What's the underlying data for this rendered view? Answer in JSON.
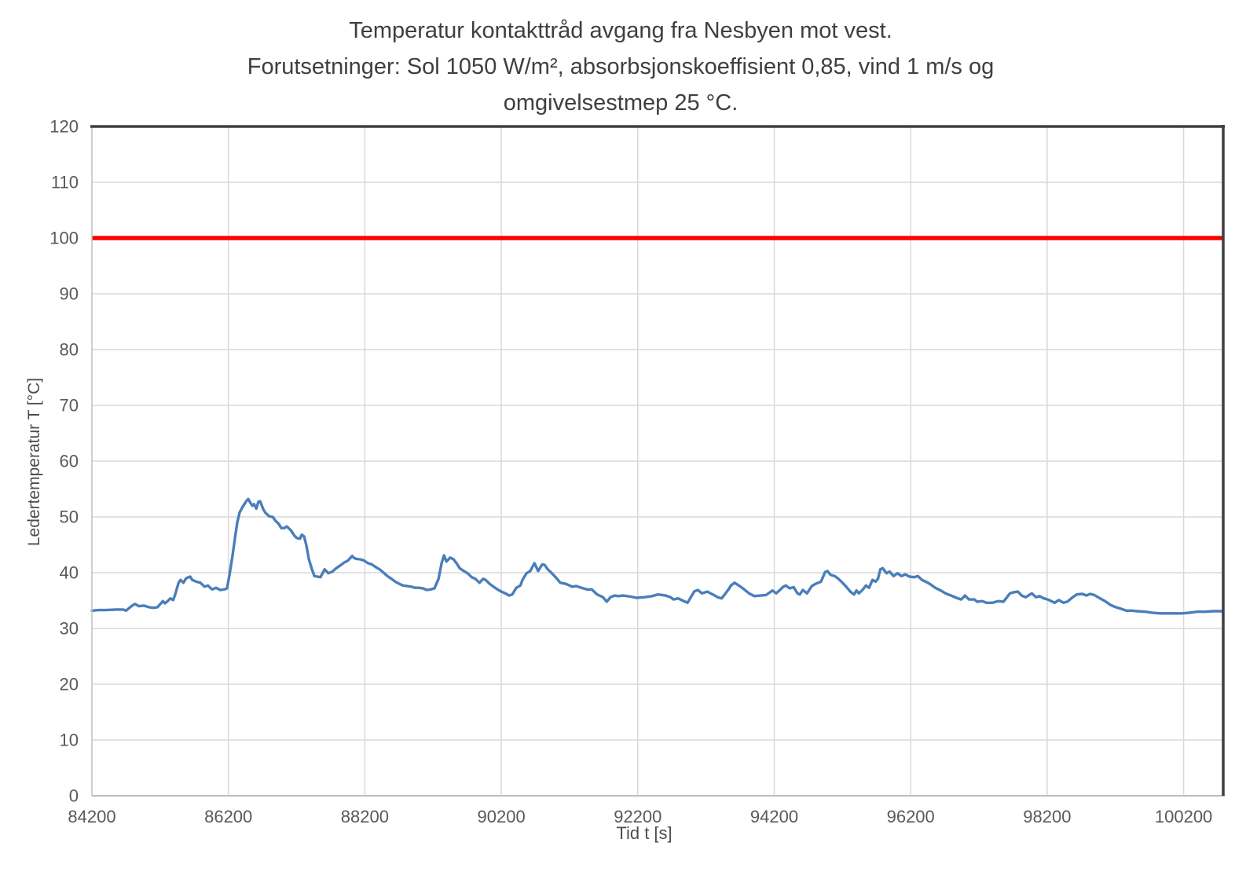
{
  "title": {
    "line1": "Temperatur kontakttråd avgang fra Nesbyen mot vest.",
    "line2": "Forutsetninger: Sol 1050 W/m², absorbsjonskoeffisient  0,85, vind 1 m/s og",
    "line3": "omgivelsestmep 25 °C."
  },
  "colors": {
    "background": "#FFFFFF",
    "grid": "#D9D9D9",
    "axis": "#BFBFBF",
    "frame_dark": "#3F3F3F",
    "tick_text": "#595959",
    "title_text": "#3F3F3F",
    "series_blue": "#4A7EBA",
    "limit_red": "#FE0000"
  },
  "chart_data": {
    "type": "line",
    "title": "Temperatur kontakttråd avgang fra Nesbyen mot vest. Forutsetninger: Sol 1050 W/m², absorbsjonskoeffisient 0,85, vind 1 m/s og omgivelsestmep 25 °C.",
    "xlabel": "Tid t [s]",
    "ylabel": "Ledertemperatur  T [°C]",
    "xlim": [
      84200,
      100780
    ],
    "ylim": [
      0,
      120
    ],
    "x_ticks": [
      84200,
      86200,
      88200,
      90200,
      92200,
      94200,
      96200,
      98200,
      100200
    ],
    "y_ticks": [
      0,
      10,
      20,
      30,
      40,
      50,
      60,
      70,
      80,
      90,
      100,
      110,
      120
    ],
    "grid": true,
    "legend_position": "none",
    "series": [
      {
        "name": "ledertemperatur",
        "type": "line",
        "color": "#4A7EBA",
        "points": [
          [
            84200,
            33.2
          ],
          [
            84300,
            33.3
          ],
          [
            84400,
            33.3
          ],
          [
            84550,
            33.4
          ],
          [
            84660,
            33.4
          ],
          [
            84700,
            33.2
          ],
          [
            84790,
            34.1
          ],
          [
            84830,
            34.4
          ],
          [
            84890,
            34.0
          ],
          [
            84960,
            34.1
          ],
          [
            85040,
            33.8
          ],
          [
            85100,
            33.7
          ],
          [
            85160,
            33.8
          ],
          [
            85240,
            34.9
          ],
          [
            85270,
            34.5
          ],
          [
            85310,
            34.9
          ],
          [
            85350,
            35.4
          ],
          [
            85390,
            35.1
          ],
          [
            85420,
            36.1
          ],
          [
            85470,
            38.2
          ],
          [
            85500,
            38.7
          ],
          [
            85540,
            38.2
          ],
          [
            85580,
            39.0
          ],
          [
            85640,
            39.3
          ],
          [
            85670,
            38.7
          ],
          [
            85730,
            38.4
          ],
          [
            85790,
            38.2
          ],
          [
            85850,
            37.5
          ],
          [
            85900,
            37.7
          ],
          [
            85960,
            37.0
          ],
          [
            86020,
            37.3
          ],
          [
            86080,
            36.9
          ],
          [
            86140,
            37.0
          ],
          [
            86180,
            37.2
          ],
          [
            86215,
            39.5
          ],
          [
            86260,
            43.0
          ],
          [
            86300,
            46.5
          ],
          [
            86330,
            49.0
          ],
          [
            86365,
            50.8
          ],
          [
            86410,
            51.8
          ],
          [
            86460,
            52.8
          ],
          [
            86490,
            53.2
          ],
          [
            86550,
            52.0
          ],
          [
            86575,
            52.3
          ],
          [
            86610,
            51.5
          ],
          [
            86640,
            52.7
          ],
          [
            86665,
            52.8
          ],
          [
            86710,
            51.4
          ],
          [
            86745,
            50.7
          ],
          [
            86800,
            50.1
          ],
          [
            86850,
            50.0
          ],
          [
            86885,
            49.4
          ],
          [
            86940,
            48.7
          ],
          [
            86975,
            48.0
          ],
          [
            87020,
            48.0
          ],
          [
            87055,
            48.3
          ],
          [
            87115,
            47.6
          ],
          [
            87170,
            46.6
          ],
          [
            87205,
            46.2
          ],
          [
            87250,
            46.1
          ],
          [
            87275,
            46.8
          ],
          [
            87310,
            46.5
          ],
          [
            87345,
            44.8
          ],
          [
            87380,
            42.4
          ],
          [
            87425,
            40.6
          ],
          [
            87460,
            39.4
          ],
          [
            87505,
            39.3
          ],
          [
            87550,
            39.2
          ],
          [
            87610,
            40.6
          ],
          [
            87665,
            39.9
          ],
          [
            87725,
            40.2
          ],
          [
            87780,
            40.8
          ],
          [
            87840,
            41.3
          ],
          [
            87895,
            41.8
          ],
          [
            87955,
            42.2
          ],
          [
            88015,
            43.0
          ],
          [
            88035,
            42.7
          ],
          [
            88070,
            42.5
          ],
          [
            88130,
            42.4
          ],
          [
            88185,
            42.2
          ],
          [
            88245,
            41.7
          ],
          [
            88300,
            41.5
          ],
          [
            88360,
            41.0
          ],
          [
            88415,
            40.6
          ],
          [
            88475,
            40.0
          ],
          [
            88530,
            39.4
          ],
          [
            88590,
            38.9
          ],
          [
            88645,
            38.4
          ],
          [
            88705,
            38.0
          ],
          [
            88760,
            37.7
          ],
          [
            88820,
            37.6
          ],
          [
            88880,
            37.5
          ],
          [
            88935,
            37.3
          ],
          [
            88990,
            37.3
          ],
          [
            89050,
            37.2
          ],
          [
            89110,
            36.9
          ],
          [
            89165,
            37.0
          ],
          [
            89220,
            37.2
          ],
          [
            89280,
            38.9
          ],
          [
            89325,
            41.7
          ],
          [
            89360,
            43.1
          ],
          [
            89395,
            42.0
          ],
          [
            89450,
            42.7
          ],
          [
            89500,
            42.4
          ],
          [
            89555,
            41.5
          ],
          [
            89590,
            40.8
          ],
          [
            89650,
            40.3
          ],
          [
            89705,
            39.9
          ],
          [
            89765,
            39.2
          ],
          [
            89820,
            38.9
          ],
          [
            89880,
            38.2
          ],
          [
            89935,
            38.9
          ],
          [
            89970,
            38.7
          ],
          [
            90030,
            38.0
          ],
          [
            90085,
            37.5
          ],
          [
            90145,
            37.0
          ],
          [
            90200,
            36.6
          ],
          [
            90260,
            36.3
          ],
          [
            90315,
            35.9
          ],
          [
            90360,
            36.1
          ],
          [
            90420,
            37.3
          ],
          [
            90480,
            37.7
          ],
          [
            90510,
            38.7
          ],
          [
            90570,
            39.9
          ],
          [
            90625,
            40.3
          ],
          [
            90685,
            41.7
          ],
          [
            90740,
            40.3
          ],
          [
            90800,
            41.5
          ],
          [
            90835,
            41.4
          ],
          [
            90880,
            40.6
          ],
          [
            90940,
            39.9
          ],
          [
            90995,
            39.2
          ],
          [
            91065,
            38.2
          ],
          [
            91145,
            38.0
          ],
          [
            91240,
            37.5
          ],
          [
            91295,
            37.6
          ],
          [
            91375,
            37.3
          ],
          [
            91455,
            37.0
          ],
          [
            91525,
            37.0
          ],
          [
            91605,
            36.1
          ],
          [
            91690,
            35.6
          ],
          [
            91745,
            34.8
          ],
          [
            91800,
            35.6
          ],
          [
            91860,
            35.9
          ],
          [
            91915,
            35.8
          ],
          [
            91985,
            35.9
          ],
          [
            92100,
            35.7
          ],
          [
            92180,
            35.5
          ],
          [
            92295,
            35.6
          ],
          [
            92410,
            35.8
          ],
          [
            92495,
            36.1
          ],
          [
            92610,
            35.9
          ],
          [
            92680,
            35.6
          ],
          [
            92725,
            35.2
          ],
          [
            92790,
            35.4
          ],
          [
            92875,
            34.9
          ],
          [
            92930,
            34.6
          ],
          [
            93025,
            36.6
          ],
          [
            93080,
            36.9
          ],
          [
            93140,
            36.3
          ],
          [
            93220,
            36.6
          ],
          [
            93300,
            36.1
          ],
          [
            93370,
            35.6
          ],
          [
            93430,
            35.4
          ],
          [
            93530,
            37.0
          ],
          [
            93565,
            37.7
          ],
          [
            93620,
            38.2
          ],
          [
            93680,
            37.7
          ],
          [
            93760,
            37.0
          ],
          [
            93830,
            36.3
          ],
          [
            93910,
            35.8
          ],
          [
            94000,
            35.9
          ],
          [
            94080,
            36.0
          ],
          [
            94175,
            36.8
          ],
          [
            94230,
            36.3
          ],
          [
            94335,
            37.5
          ],
          [
            94370,
            37.7
          ],
          [
            94425,
            37.2
          ],
          [
            94485,
            37.4
          ],
          [
            94540,
            36.3
          ],
          [
            94575,
            36.1
          ],
          [
            94620,
            36.9
          ],
          [
            94680,
            36.3
          ],
          [
            94750,
            37.6
          ],
          [
            94805,
            38.0
          ],
          [
            94885,
            38.4
          ],
          [
            94945,
            40.1
          ],
          [
            94980,
            40.3
          ],
          [
            95025,
            39.6
          ],
          [
            95085,
            39.4
          ],
          [
            95140,
            38.9
          ],
          [
            95200,
            38.2
          ],
          [
            95255,
            37.5
          ],
          [
            95315,
            36.6
          ],
          [
            95370,
            36.1
          ],
          [
            95405,
            36.8
          ],
          [
            95440,
            36.3
          ],
          [
            95500,
            37.0
          ],
          [
            95545,
            37.7
          ],
          [
            95590,
            37.3
          ],
          [
            95640,
            38.7
          ],
          [
            95685,
            38.4
          ],
          [
            95720,
            38.9
          ],
          [
            95755,
            40.6
          ],
          [
            95790,
            40.8
          ],
          [
            95845,
            39.9
          ],
          [
            95890,
            40.2
          ],
          [
            95950,
            39.4
          ],
          [
            96005,
            39.9
          ],
          [
            96065,
            39.4
          ],
          [
            96120,
            39.7
          ],
          [
            96180,
            39.3
          ],
          [
            96250,
            39.2
          ],
          [
            96305,
            39.4
          ],
          [
            96365,
            38.7
          ],
          [
            96420,
            38.4
          ],
          [
            96480,
            38.0
          ],
          [
            96560,
            37.3
          ],
          [
            96640,
            36.8
          ],
          [
            96710,
            36.3
          ],
          [
            96790,
            35.9
          ],
          [
            96870,
            35.5
          ],
          [
            96940,
            35.2
          ],
          [
            96995,
            35.9
          ],
          [
            97055,
            35.2
          ],
          [
            97135,
            35.2
          ],
          [
            97170,
            34.8
          ],
          [
            97250,
            34.9
          ],
          [
            97310,
            34.6
          ],
          [
            97400,
            34.6
          ],
          [
            97480,
            34.9
          ],
          [
            97560,
            34.8
          ],
          [
            97630,
            35.9
          ],
          [
            97655,
            36.3
          ],
          [
            97710,
            36.5
          ],
          [
            97770,
            36.6
          ],
          [
            97825,
            35.9
          ],
          [
            97885,
            35.6
          ],
          [
            97975,
            36.3
          ],
          [
            98035,
            35.6
          ],
          [
            98090,
            35.8
          ],
          [
            98150,
            35.4
          ],
          [
            98210,
            35.2
          ],
          [
            98310,
            34.6
          ],
          [
            98370,
            35.1
          ],
          [
            98440,
            34.6
          ],
          [
            98495,
            34.8
          ],
          [
            98575,
            35.6
          ],
          [
            98635,
            36.1
          ],
          [
            98715,
            36.2
          ],
          [
            98775,
            35.9
          ],
          [
            98830,
            36.2
          ],
          [
            98890,
            36.0
          ],
          [
            98945,
            35.6
          ],
          [
            99005,
            35.2
          ],
          [
            99060,
            34.8
          ],
          [
            99130,
            34.2
          ],
          [
            99210,
            33.8
          ],
          [
            99290,
            33.5
          ],
          [
            99360,
            33.2
          ],
          [
            99440,
            33.2
          ],
          [
            99520,
            33.1
          ],
          [
            99635,
            33.0
          ],
          [
            99750,
            32.8
          ],
          [
            99865,
            32.7
          ],
          [
            100015,
            32.7
          ],
          [
            100165,
            32.7
          ],
          [
            100280,
            32.8
          ],
          [
            100395,
            33.0
          ],
          [
            100510,
            33.0
          ],
          [
            100625,
            33.1
          ],
          [
            100780,
            33.1
          ]
        ]
      },
      {
        "name": "grenselinje-100",
        "type": "hline",
        "color": "#FE0000",
        "value": 100
      }
    ]
  }
}
